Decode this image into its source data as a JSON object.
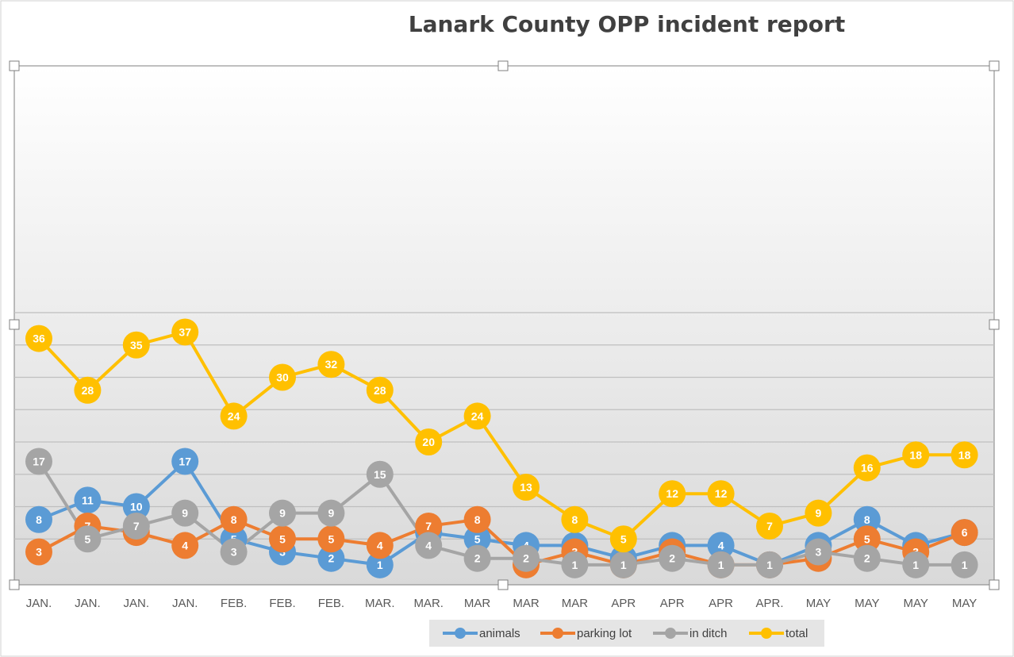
{
  "chart_data": {
    "type": "line",
    "title": "Lanark County OPP incident report",
    "categories": [
      "JAN.",
      "JAN.",
      "JAN.",
      "JAN.",
      "FEB.",
      "FEB.",
      "FEB.",
      "MAR.",
      "MAR.",
      "MAR",
      "MAR",
      "MAR",
      "APR",
      "APR",
      "APR",
      "APR.",
      "MAY",
      "MAY",
      "MAY",
      "MAY"
    ],
    "series": [
      {
        "name": "animals",
        "color": "#5B9BD5",
        "values": [
          8,
          11,
          10,
          17,
          5,
          3,
          2,
          1,
          6,
          5,
          4,
          4,
          2,
          4,
          4,
          1,
          4,
          8,
          4,
          6
        ]
      },
      {
        "name": "parking lot",
        "color": "#ED7D31",
        "values": [
          3,
          7,
          6,
          4,
          8,
          5,
          5,
          4,
          7,
          8,
          1,
          3,
          1,
          3,
          1,
          1,
          2,
          5,
          3,
          6
        ]
      },
      {
        "name": "in ditch",
        "color": "#A5A5A5",
        "values": [
          17,
          5,
          7,
          9,
          3,
          9,
          9,
          15,
          4,
          2,
          2,
          1,
          1,
          2,
          1,
          1,
          3,
          2,
          1,
          1
        ]
      },
      {
        "name": "total",
        "color": "#FFC000",
        "values": [
          36,
          28,
          35,
          37,
          24,
          30,
          32,
          28,
          20,
          24,
          13,
          8,
          5,
          12,
          12,
          7,
          9,
          16,
          18,
          18
        ]
      }
    ],
    "ylim": [
      0,
      40
    ],
    "grid": true,
    "legend_position": "bottom"
  }
}
